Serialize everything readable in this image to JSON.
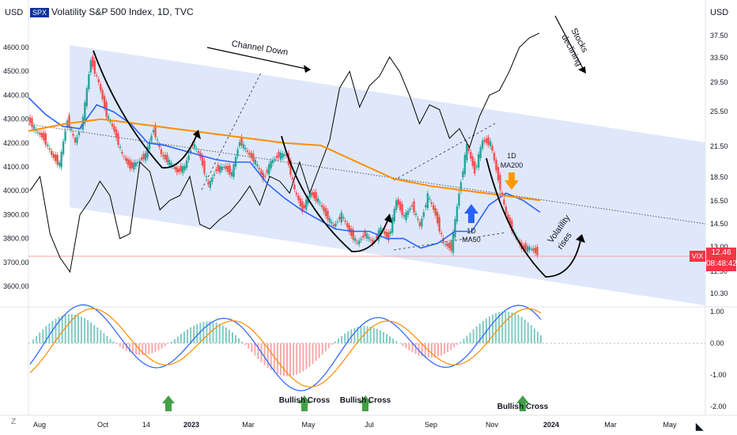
{
  "header": {
    "symbol_badge": "SPX",
    "title": "Volatility S&P 500 Index, 1D, TVC",
    "currency_left": "USD",
    "currency_right": "USD"
  },
  "vix_marker": {
    "ticker": "VIX",
    "price": "12.46",
    "countdown": "08:48:42"
  },
  "chart_data": [
    {
      "type": "line",
      "title": "Volatility S&P 500 Index, 1D, TVC",
      "left_axis": {
        "label": "USD",
        "ticks": [
          "4600.00",
          "4500.00",
          "4400.00",
          "4300.00",
          "4200.00",
          "4100.00",
          "4000.00",
          "3900.00",
          "3800.00",
          "3700.00",
          "3600.00"
        ],
        "ylim": [
          3560,
          4660
        ]
      },
      "right_axis": {
        "label": "USD",
        "ticks": [
          "37.50",
          "33.50",
          "29.50",
          "25.50",
          "21.50",
          "18.50",
          "16.50",
          "14.50",
          "13.00",
          "11.50",
          "10.30"
        ]
      },
      "x_ticks": [
        "Aug",
        "Oct",
        "14",
        "2023",
        "Mar",
        "May",
        "Jul",
        "Sep",
        "Nov",
        "2024",
        "Mar",
        "May"
      ],
      "series": [
        {
          "name": "SPX",
          "values": [
            4300,
            4250,
            4220,
            4150,
            4110,
            4300,
            4200,
            4300,
            4550,
            4450,
            4320,
            4250,
            4150,
            4100,
            4120,
            4150,
            4260,
            4150,
            4120,
            4080,
            4100,
            4200,
            4140,
            4020,
            4090,
            4100,
            4070,
            4210,
            4160,
            4120,
            4050,
            4120,
            4150,
            4150,
            4000,
            3920,
            3990,
            3960,
            3900,
            3850,
            3900,
            3830,
            3780,
            3820,
            3780,
            3840,
            3800,
            3960,
            3890,
            3940,
            3850,
            3980,
            3900,
            3780,
            3760,
            3990,
            4190,
            4080,
            4210,
            4200,
            4050,
            3900,
            3820,
            3760,
            3760,
            3740
          ]
        },
        {
          "name": "VIX",
          "values": [
            4000,
            4060,
            3820,
            3720,
            3660,
            3900,
            3960,
            4040,
            3980,
            3800,
            3820,
            4120,
            4080,
            3920,
            3960,
            3980,
            4060,
            3860,
            3840,
            3880,
            3910,
            3960,
            4020,
            3940,
            4060,
            4040,
            3990,
            4120,
            3990,
            4100,
            4210,
            4430,
            4500,
            4350,
            4440,
            4480,
            4560,
            4500,
            4400,
            4280,
            4360,
            4340,
            4220,
            4260,
            4180,
            4310,
            4400,
            4420,
            4500,
            4600,
            4640,
            4660
          ]
        },
        {
          "name": "1D MA50",
          "values": [
            4390,
            4320,
            4270,
            4260,
            4360,
            4330,
            4280,
            4200,
            4190,
            4170,
            4150,
            4130,
            4120,
            4120,
            4030,
            3970,
            3920,
            3880,
            3840,
            3830,
            3830,
            3800,
            3800,
            3760,
            3780,
            3830,
            3830,
            3940,
            3990,
            3960,
            3910
          ]
        },
        {
          "name": "1D MA200",
          "values": [
            4250,
            4280,
            4300,
            4280,
            4260,
            4240,
            4220,
            4200,
            4190,
            4120,
            4050,
            4020,
            4000,
            3980,
            3960
          ]
        }
      ],
      "annotations": [
        "Channel Down",
        "Stocks declining",
        "1D MA200",
        "1D MA50",
        "Volatility rises"
      ]
    },
    {
      "type": "bar",
      "title": "",
      "y_ticks": [
        "1.00",
        "0.00",
        "-1.00",
        "-2.00"
      ],
      "ylim": [
        -2.2,
        1.3
      ],
      "annotations": [
        "Bullish Cross",
        "Bullish Cross",
        "Bullish Cross"
      ]
    }
  ],
  "colors": {
    "channel_fill": "#dce6fb",
    "up": "#26a69a",
    "down": "#ef5350",
    "ma50": "#2962ff",
    "ma200": "#ff8c00",
    "vix_line": "#000000",
    "arrow_green": "#43a047",
    "arrow_blue": "#2962ff",
    "arrow_orange": "#ff9800",
    "vix_red": "#f23645"
  },
  "footer": {
    "z_label": "Z",
    "logo_icon": "tradingview-logo-icon"
  }
}
